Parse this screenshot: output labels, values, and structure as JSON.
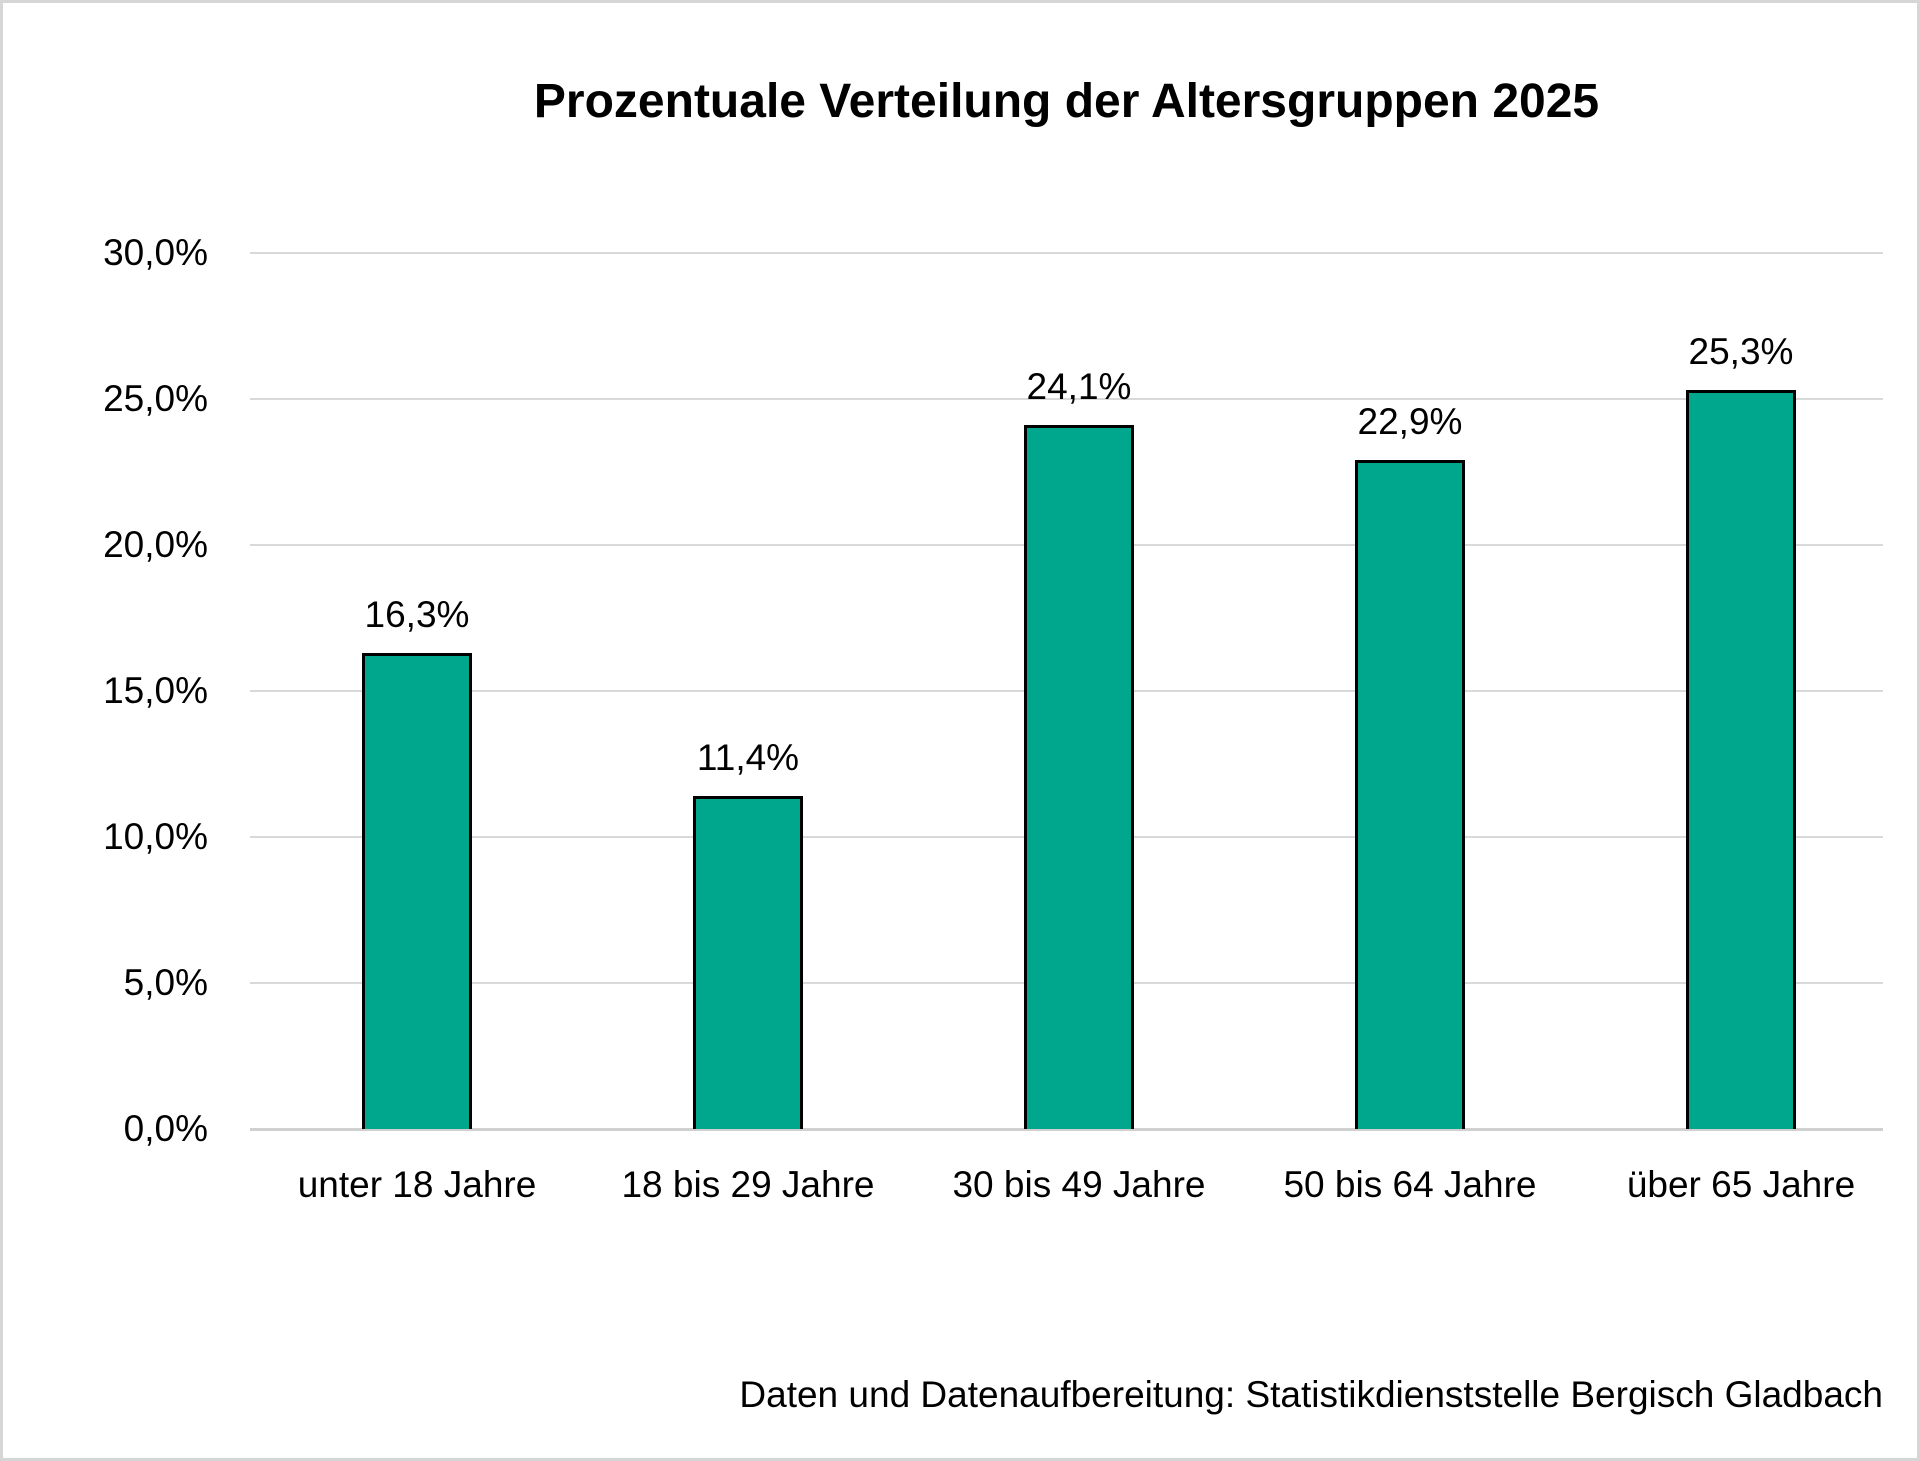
{
  "page": {
    "background": "#ffffff",
    "frame_border_color": "#d6d6d6",
    "text_color": "#000000"
  },
  "chart_data": {
    "type": "bar",
    "title": "Prozentuale Verteilung der Altersgruppen 2025",
    "categories": [
      "unter 18 Jahre",
      "18 bis 29 Jahre",
      "30 bis 49 Jahre",
      "50 bis 64 Jahre",
      "über 65 Jahre"
    ],
    "values": [
      16.3,
      11.4,
      24.1,
      22.9,
      25.3
    ],
    "value_labels": [
      "16,3%",
      "11,4%",
      "24,1%",
      "22,9%",
      "25,3%"
    ],
    "xlabel": "",
    "ylabel": "",
    "ylim": [
      0,
      30
    ],
    "y_ticks": [
      0,
      5,
      10,
      15,
      20,
      25,
      30
    ],
    "y_tick_labels": [
      "0,0%",
      "5,0%",
      "10,0%",
      "15,0%",
      "20,0%",
      "25,0%",
      "30,0%"
    ],
    "grid": true,
    "gridline_color": "#d9d9d9",
    "bar_color": "#00A78C",
    "bar_border_color": "#000000",
    "legend": "none",
    "source_note": "Daten und Datenaufbereitung: Statistikdienststelle Bergisch Gladbach"
  }
}
